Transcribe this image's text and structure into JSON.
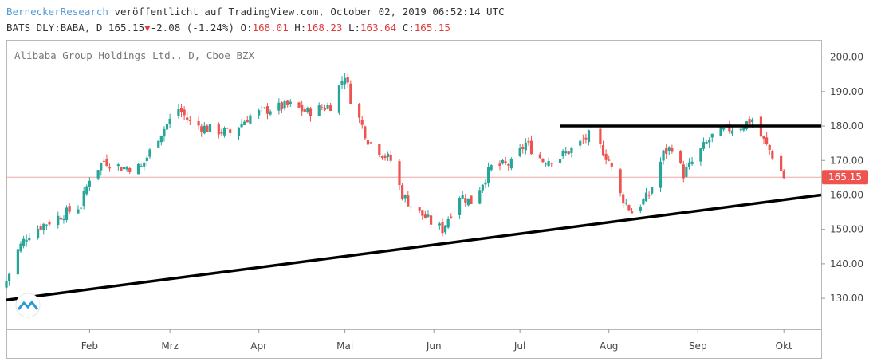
{
  "header": {
    "brand": "BerneckerResearch",
    "published": " veröffentlicht auf TradingView.com, October 02, 2019 06:52:14 UTC",
    "ticker": "BATS_DLY:BABA, D 165.15",
    "arrow": "▼",
    "change": "-2.08 (-1.24%)",
    "o_label": " O:",
    "o_value": "168.01",
    "h_label": " H:",
    "h_value": "168.23",
    "l_label": " L:",
    "l_value": "163.64",
    "c_label": " C:",
    "c_value": "165.15"
  },
  "colors": {
    "up": "#26a69a",
    "down": "#ef5350",
    "price_line": "#f4a6a6",
    "price_label_bg": "#ef5350",
    "trendline": "#000000"
  },
  "chart_data": {
    "type": "candlestick",
    "legend": "Alibaba Group Holdings Ltd., D, Cboe BZX",
    "last_price_label": "165.15",
    "last_price": 165.15,
    "ylim": [
      121,
      205
    ],
    "y_ticks": [
      130,
      140,
      150,
      160,
      170,
      180,
      190,
      200
    ],
    "y_tick_labels": [
      "130.00",
      "140.00",
      "150.00",
      "160.00",
      "170.00",
      "180.00",
      "190.00",
      "200.00"
    ],
    "x_ticks": [
      {
        "label": "Feb",
        "date": "2019-02-01"
      },
      {
        "label": "Mrz",
        "date": "2019-03-01"
      },
      {
        "label": "Apr",
        "date": "2019-04-01"
      },
      {
        "label": "Mai",
        "date": "2019-05-01"
      },
      {
        "label": "Jun",
        "date": "2019-06-01"
      },
      {
        "label": "Jul",
        "date": "2019-07-01"
      },
      {
        "label": "Aug",
        "date": "2019-08-01"
      },
      {
        "label": "Sep",
        "date": "2019-09-01"
      },
      {
        "label": "Okt",
        "date": "2019-10-01"
      }
    ],
    "x_range": [
      "2019-01-03",
      "2019-10-14"
    ],
    "close_anchors": [
      [
        "2019-01-03",
        135
      ],
      [
        "2019-01-07",
        144
      ],
      [
        "2019-01-10",
        148
      ],
      [
        "2019-01-15",
        151
      ],
      [
        "2019-01-22",
        154
      ],
      [
        "2019-01-29",
        157
      ],
      [
        "2019-02-01",
        165
      ],
      [
        "2019-02-06",
        170
      ],
      [
        "2019-02-12",
        168
      ],
      [
        "2019-02-19",
        168
      ],
      [
        "2019-02-25",
        177
      ],
      [
        "2019-03-04",
        185
      ],
      [
        "2019-03-08",
        181
      ],
      [
        "2019-03-15",
        179
      ],
      [
        "2019-03-22",
        178
      ],
      [
        "2019-03-29",
        183
      ],
      [
        "2019-04-05",
        185
      ],
      [
        "2019-04-12",
        186
      ],
      [
        "2019-04-18",
        184
      ],
      [
        "2019-04-26",
        186
      ],
      [
        "2019-05-01",
        195
      ],
      [
        "2019-05-03",
        188
      ],
      [
        "2019-05-09",
        176
      ],
      [
        "2019-05-14",
        172
      ],
      [
        "2019-05-17",
        170
      ],
      [
        "2019-05-21",
        160
      ],
      [
        "2019-05-24",
        157
      ],
      [
        "2019-05-31",
        152
      ],
      [
        "2019-06-04",
        150
      ],
      [
        "2019-06-10",
        160
      ],
      [
        "2019-06-14",
        158
      ],
      [
        "2019-06-21",
        168
      ],
      [
        "2019-06-28",
        169
      ],
      [
        "2019-07-03",
        175
      ],
      [
        "2019-07-09",
        170
      ],
      [
        "2019-07-15",
        171
      ],
      [
        "2019-07-22",
        175
      ],
      [
        "2019-07-26",
        178
      ],
      [
        "2019-08-01",
        170
      ],
      [
        "2019-08-05",
        160
      ],
      [
        "2019-08-09",
        155
      ],
      [
        "2019-08-15",
        160
      ],
      [
        "2019-08-20",
        172
      ],
      [
        "2019-08-23",
        174
      ],
      [
        "2019-08-27",
        166
      ],
      [
        "2019-09-03",
        174
      ],
      [
        "2019-09-06",
        177
      ],
      [
        "2019-09-11",
        179
      ],
      [
        "2019-09-16",
        180
      ],
      [
        "2019-09-20",
        182
      ],
      [
        "2019-09-23",
        177
      ],
      [
        "2019-09-26",
        173
      ],
      [
        "2019-09-30",
        167
      ],
      [
        "2019-10-01",
        165.15
      ]
    ],
    "horizontal_line": {
      "start": "2019-07-15",
      "end": "2019-10-14",
      "value": 180
    },
    "trend_line": {
      "start": [
        "2019-01-03",
        129.5
      ],
      "end": [
        "2019-10-14",
        160
      ]
    }
  }
}
